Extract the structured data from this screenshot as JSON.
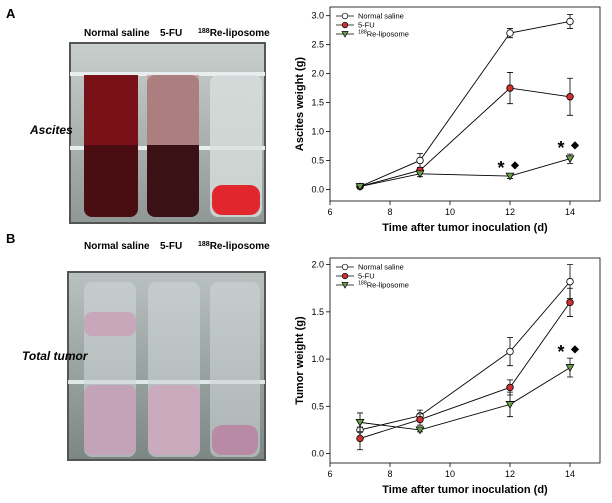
{
  "photos": [
    {
      "panel": "A",
      "labels": [
        "Normal saline",
        "5-FU",
        "188Re-liposome"
      ],
      "caption": "Ascites"
    },
    {
      "panel": "B",
      "labels": [
        "Normal saline",
        "5-FU",
        "188Re-liposome"
      ],
      "caption": "Total tumor"
    }
  ],
  "chart_data": [
    {
      "type": "line",
      "x_label": "Time after tumor inoculation (d)",
      "y_label": "Ascites weight (g)",
      "xlim": [
        6,
        15
      ],
      "xticks": [
        6,
        8,
        10,
        12,
        14
      ],
      "ylim": [
        -0.2,
        3.15
      ],
      "yticks": [
        {
          "value": 0,
          "label": "0.0"
        },
        0.5,
        {
          "value": 1,
          "label": "1.0"
        },
        1.5,
        {
          "value": 2,
          "label": "2.0"
        },
        2.5,
        {
          "value": 3,
          "label": "3.0"
        }
      ],
      "legend": "upper left",
      "series": [
        {
          "name": "Normal saline",
          "marker": "circle",
          "color": "#ffffff",
          "x": [
            7,
            9,
            12,
            14
          ],
          "values": [
            0.05,
            0.5,
            2.7,
            2.9
          ],
          "errors": [
            0.03,
            0.12,
            0.08,
            0.12
          ]
        },
        {
          "name": "5-FU",
          "marker": "circle",
          "color": "#d03030",
          "x": [
            7,
            9,
            12,
            14
          ],
          "values": [
            0.05,
            0.33,
            1.75,
            1.6
          ],
          "errors": [
            0.02,
            0.05,
            0.27,
            0.32
          ]
        },
        {
          "name": "188Re-liposome",
          "marker": "triangle-down",
          "color": "#6aa04a",
          "x": [
            7,
            9,
            12,
            14
          ],
          "values": [
            0.05,
            0.27,
            0.23,
            0.53
          ],
          "errors": [
            0.02,
            0.05,
            0.04,
            0.08
          ]
        }
      ],
      "annotations": [
        {
          "x": 12,
          "text": "*"
        },
        {
          "x": 12,
          "text": "◆"
        },
        {
          "x": 14,
          "text": "*"
        },
        {
          "x": 14,
          "text": "◆"
        }
      ]
    },
    {
      "type": "line",
      "x_label": "Time after tumor inoculation (d)",
      "y_label": "Tumor weight (g)",
      "xlim": [
        6,
        15
      ],
      "xticks": [
        6,
        8,
        10,
        12,
        14
      ],
      "ylim": [
        -0.1,
        2.07
      ],
      "yticks": [
        {
          "value": 0,
          "label": "0.0"
        },
        0.5,
        {
          "value": 1,
          "label": "1.0"
        },
        1.5,
        {
          "value": 2,
          "label": "2.0"
        }
      ],
      "legend": "upper left",
      "series": [
        {
          "name": "Normal saline",
          "marker": "circle",
          "color": "#ffffff",
          "x": [
            7,
            9,
            12,
            14
          ],
          "values": [
            0.25,
            0.4,
            1.08,
            1.82
          ],
          "errors": [
            0.1,
            0.06,
            0.15,
            0.18
          ]
        },
        {
          "name": "5-FU",
          "marker": "circle",
          "color": "#d03030",
          "x": [
            7,
            9,
            12,
            14
          ],
          "values": [
            0.16,
            0.36,
            0.7,
            1.6
          ],
          "errors": [
            0.12,
            0.06,
            0.08,
            0.15
          ]
        },
        {
          "name": "188Re-liposome",
          "marker": "triangle-down",
          "color": "#6aa04a",
          "x": [
            7,
            9,
            12,
            14
          ],
          "values": [
            0.33,
            0.25,
            0.52,
            0.91
          ],
          "errors": [
            0.1,
            0.02,
            0.13,
            0.1
          ]
        }
      ],
      "annotations": [
        {
          "x": 14,
          "text": "*"
        },
        {
          "x": 14,
          "text": "◆"
        }
      ]
    }
  ]
}
